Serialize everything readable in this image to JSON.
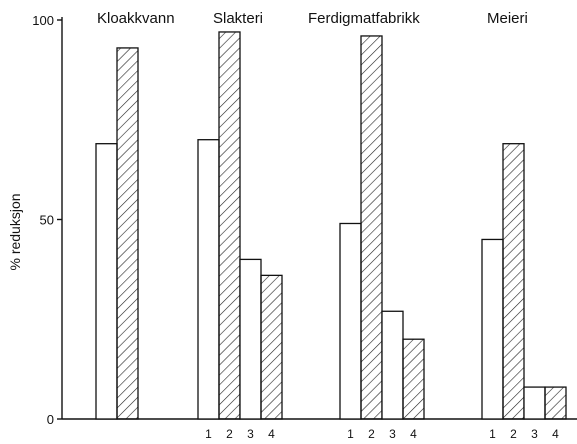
{
  "chart_data": {
    "type": "bar",
    "ylabel": "% reduksjon",
    "ylim": [
      0,
      100
    ],
    "yticks": [
      0,
      50,
      100
    ],
    "subcategory_labels": [
      "1",
      "2",
      "3",
      "4"
    ],
    "groups": [
      {
        "name": "Kloakkvann",
        "values": [
          69,
          93,
          null,
          null
        ],
        "show_sublabels": false
      },
      {
        "name": "Slakteri",
        "values": [
          70,
          97,
          40,
          36
        ],
        "show_sublabels": true
      },
      {
        "name": "Ferdigmatfabrikk",
        "values": [
          49,
          96,
          27,
          20
        ],
        "show_sublabels": true
      },
      {
        "name": "Meieri",
        "values": [
          45,
          69,
          8,
          8
        ],
        "show_sublabels": true
      }
    ],
    "bar_styles": [
      "open",
      "hatched",
      "open",
      "hatched"
    ]
  }
}
